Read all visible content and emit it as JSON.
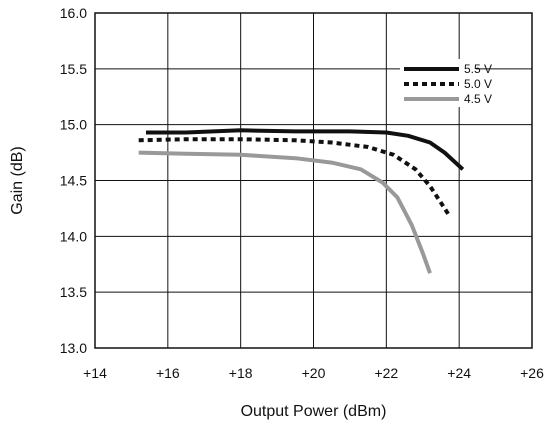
{
  "chart_data": {
    "type": "line",
    "title": "",
    "xlabel": "Output Power (dBm)",
    "ylabel": "Gain (dB)",
    "xlim": [
      14,
      26
    ],
    "ylim": [
      13.0,
      16.0
    ],
    "x_ticks": [
      {
        "value": 14,
        "label": "+14"
      },
      {
        "value": 16,
        "label": "+16"
      },
      {
        "value": 18,
        "label": "+18"
      },
      {
        "value": 20,
        "label": "+20"
      },
      {
        "value": 22,
        "label": "+22"
      },
      {
        "value": 24,
        "label": "+24"
      },
      {
        "value": 26,
        "label": "+26"
      }
    ],
    "y_ticks": [
      {
        "value": 13.0,
        "label": "13.0"
      },
      {
        "value": 13.5,
        "label": "13.5"
      },
      {
        "value": 14.0,
        "label": "14.0"
      },
      {
        "value": 14.5,
        "label": "14.5"
      },
      {
        "value": 15.0,
        "label": "15.0"
      },
      {
        "value": 15.5,
        "label": "15.5"
      },
      {
        "value": 16.0,
        "label": "16.0"
      }
    ],
    "grid": true,
    "legend_position": "top-right",
    "series": [
      {
        "name": "5.5 V",
        "color": "#111111",
        "dash": "solid",
        "points": [
          [
            15.4,
            14.93
          ],
          [
            16.5,
            14.93
          ],
          [
            18.0,
            14.95
          ],
          [
            19.5,
            14.94
          ],
          [
            21.0,
            14.94
          ],
          [
            22.0,
            14.93
          ],
          [
            22.6,
            14.9
          ],
          [
            23.2,
            14.84
          ],
          [
            23.6,
            14.75
          ],
          [
            24.1,
            14.6
          ]
        ]
      },
      {
        "name": "5.0 V",
        "color": "#111111",
        "dash": "dotted",
        "points": [
          [
            15.2,
            14.86
          ],
          [
            16.5,
            14.87
          ],
          [
            18.0,
            14.87
          ],
          [
            19.5,
            14.86
          ],
          [
            20.5,
            14.84
          ],
          [
            21.5,
            14.8
          ],
          [
            22.2,
            14.73
          ],
          [
            22.8,
            14.6
          ],
          [
            23.2,
            14.45
          ],
          [
            23.5,
            14.3
          ],
          [
            23.7,
            14.2
          ]
        ]
      },
      {
        "name": "4.5 V",
        "color": "#999999",
        "dash": "solid",
        "points": [
          [
            15.2,
            14.75
          ],
          [
            16.5,
            14.74
          ],
          [
            18.0,
            14.73
          ],
          [
            19.5,
            14.7
          ],
          [
            20.5,
            14.66
          ],
          [
            21.3,
            14.6
          ],
          [
            21.9,
            14.48
          ],
          [
            22.3,
            14.35
          ],
          [
            22.7,
            14.1
          ],
          [
            23.0,
            13.85
          ],
          [
            23.2,
            13.67
          ]
        ]
      }
    ]
  }
}
